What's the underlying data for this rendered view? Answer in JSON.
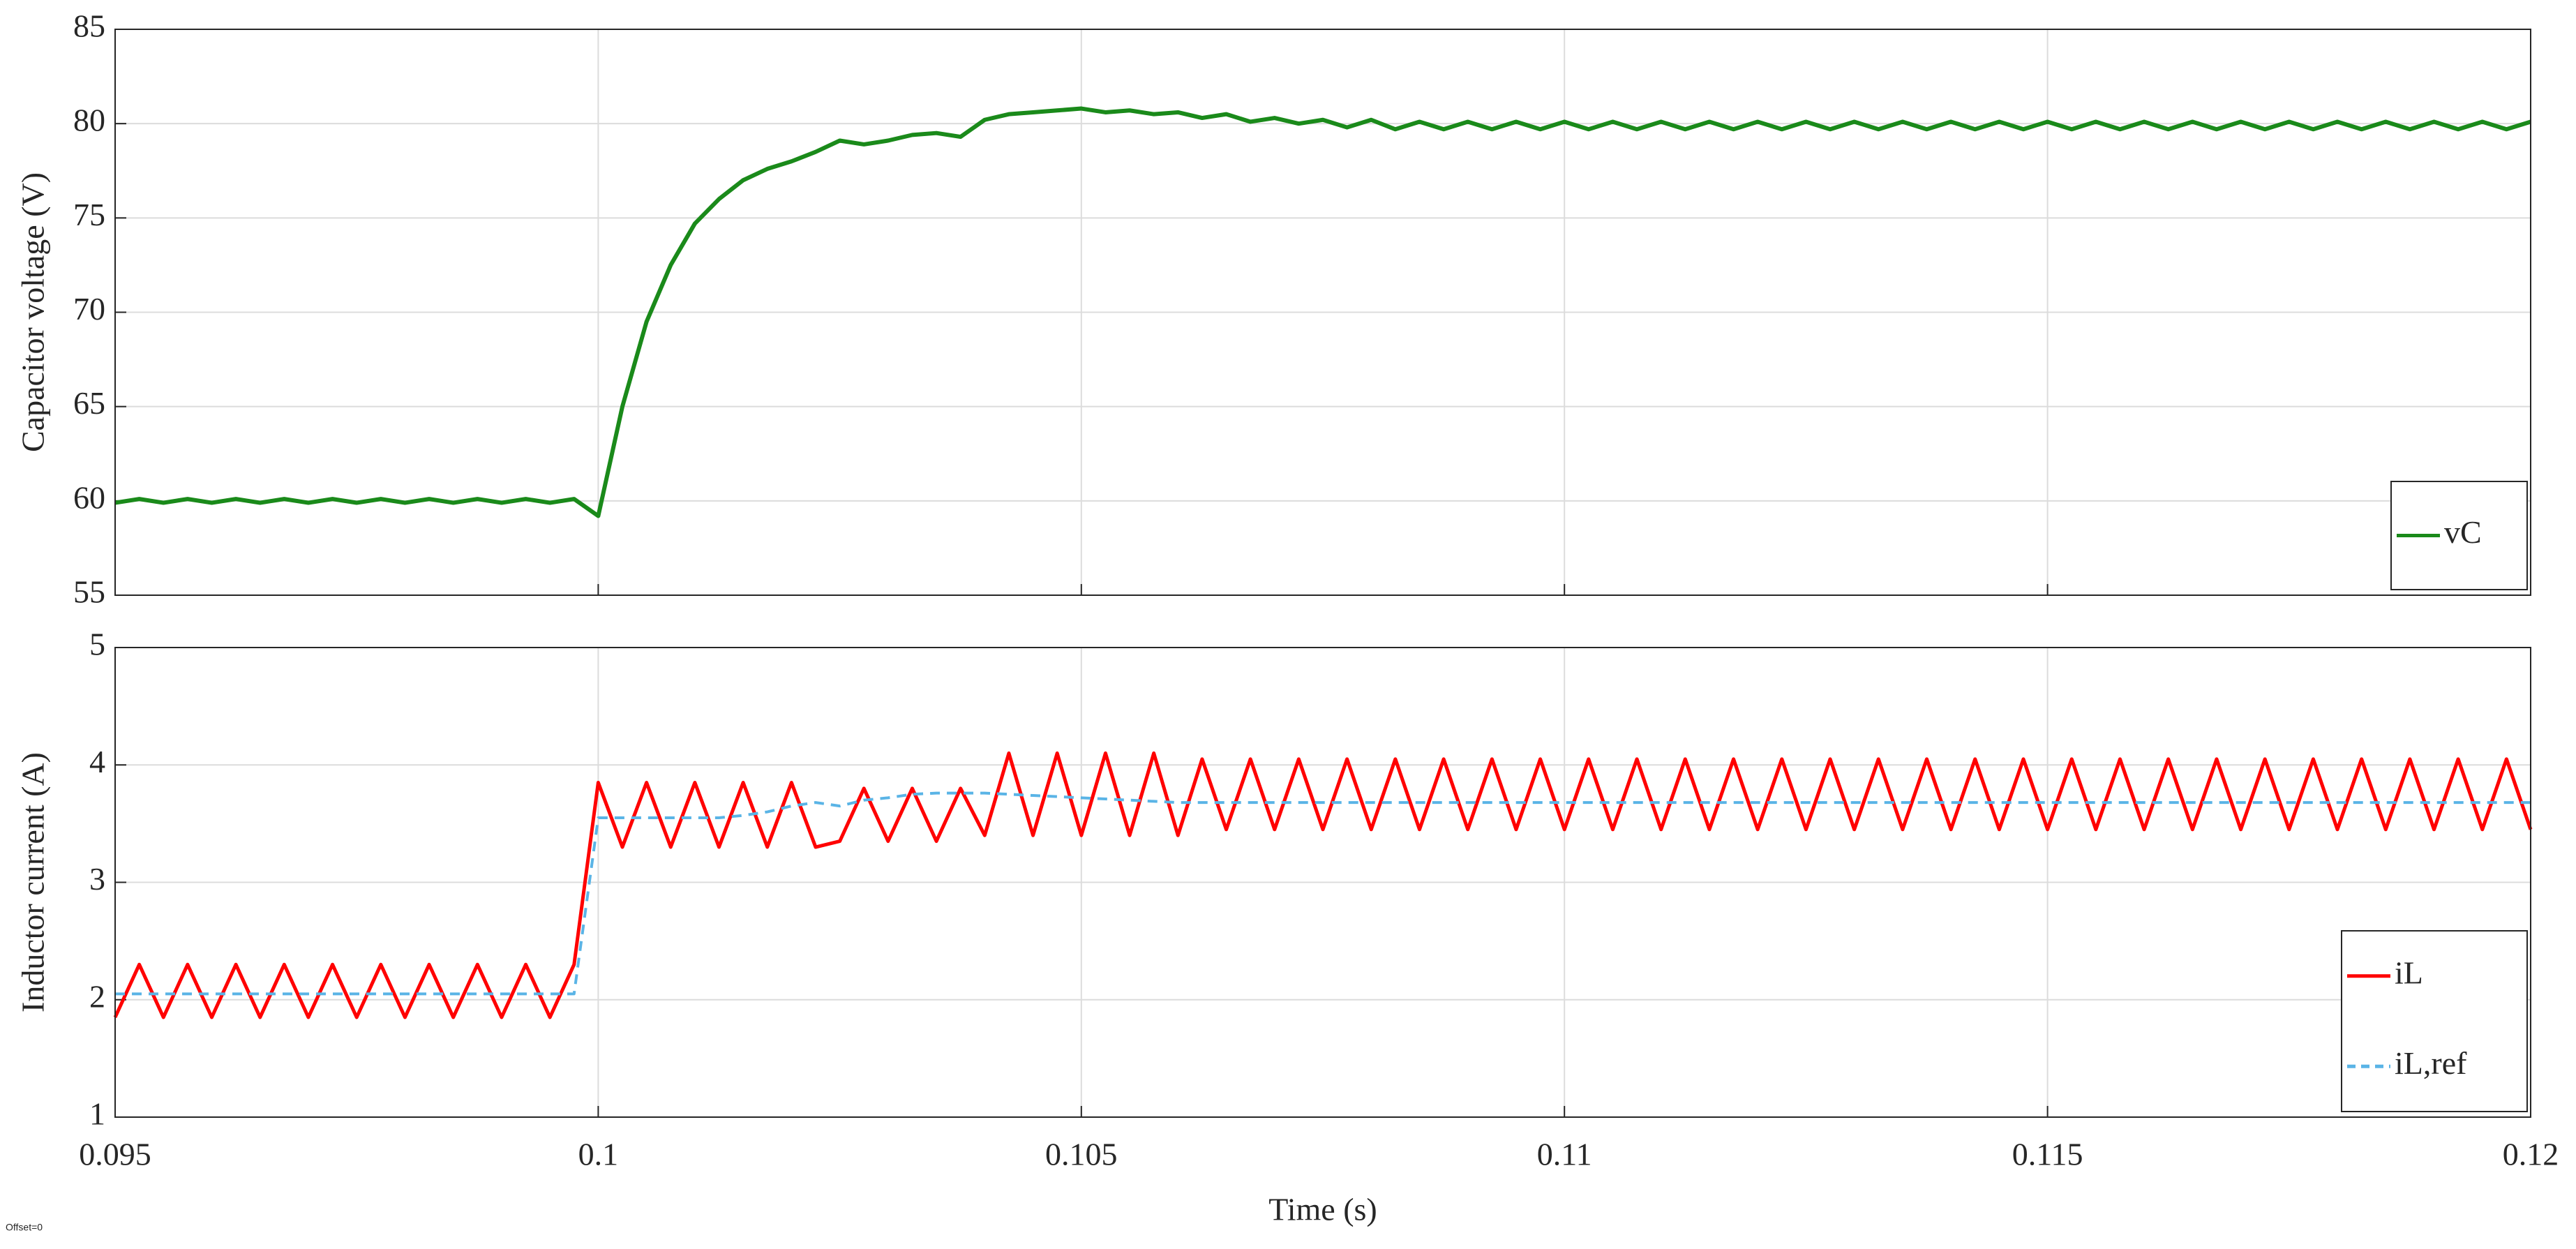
{
  "chart_data": [
    {
      "type": "line",
      "ylabel": "Capacitor voltage (V)",
      "x": [
        0.095,
        0.09525,
        0.0955,
        0.09575,
        0.096,
        0.09625,
        0.0965,
        0.09675,
        0.097,
        0.09725,
        0.0975,
        0.09775,
        0.098,
        0.09825,
        0.0985,
        0.09875,
        0.099,
        0.09925,
        0.0995,
        0.09975,
        0.1,
        0.10025,
        0.1005,
        0.10075,
        0.101,
        0.10125,
        0.1015,
        0.10175,
        0.102,
        0.10225,
        0.1025,
        0.10275,
        0.103,
        0.10325,
        0.1035,
        0.10375,
        0.104,
        0.10425,
        0.1045,
        0.10475,
        0.105,
        0.10525,
        0.1055,
        0.10575,
        0.106,
        0.10625,
        0.1065,
        0.10675,
        0.107,
        0.10725,
        0.1075,
        0.10775,
        0.108,
        0.10825,
        0.1085,
        0.10875,
        0.109,
        0.10925,
        0.1095,
        0.10975,
        0.11,
        0.11025,
        0.1105,
        0.11075,
        0.111,
        0.11125,
        0.1115,
        0.11175,
        0.112,
        0.11225,
        0.1125,
        0.11275,
        0.113,
        0.11325,
        0.1135,
        0.11375,
        0.114,
        0.11425,
        0.1145,
        0.11475,
        0.115,
        0.11525,
        0.1155,
        0.11575,
        0.116,
        0.11625,
        0.1165,
        0.11675,
        0.117,
        0.11725,
        0.1175,
        0.11775,
        0.118,
        0.11825,
        0.1185,
        0.11875,
        0.119,
        0.11925,
        0.1195,
        0.11975,
        0.12
      ],
      "series": [
        {
          "name": "vC",
          "color": "#1a8a1a",
          "values": [
            59.9,
            60.1,
            59.9,
            60.1,
            59.9,
            60.1,
            59.9,
            60.1,
            59.9,
            60.1,
            59.9,
            60.1,
            59.9,
            60.1,
            59.9,
            60.1,
            59.9,
            60.1,
            59.9,
            60.1,
            59.2,
            65,
            69.5,
            72.5,
            74.7,
            76,
            77,
            77.6,
            78,
            78.5,
            79.1,
            78.9,
            79.1,
            79.4,
            79.5,
            79.3,
            80.2,
            80.5,
            80.6,
            80.7,
            80.8,
            80.6,
            80.7,
            80.5,
            80.6,
            80.3,
            80.5,
            80.1,
            80.3,
            80.0,
            80.2,
            79.8,
            80.2,
            79.7,
            80.1,
            79.7,
            80.1,
            79.7,
            80.1,
            79.7,
            80.1,
            79.7,
            80.1,
            79.7,
            80.1,
            79.7,
            80.1,
            79.7,
            80.1,
            79.7,
            80.1,
            79.7,
            80.1,
            79.7,
            80.1,
            79.7,
            80.1,
            79.7,
            80.1,
            79.7,
            80.1,
            79.7,
            80.1,
            79.7,
            80.1,
            79.7,
            80.1,
            79.7,
            80.1,
            79.7,
            80.1,
            79.7,
            80.1,
            79.7,
            80.1,
            79.7,
            80.1,
            79.7,
            80.1,
            79.7,
            80.1
          ]
        }
      ],
      "xlim": [
        0.095,
        0.12
      ],
      "xticks": [
        0.095,
        0.1,
        0.105,
        0.11,
        0.115,
        0.12
      ],
      "ylim": [
        55,
        85
      ],
      "yticks": [
        55,
        60,
        65,
        70,
        75,
        80,
        85
      ],
      "grid": true,
      "legend": "lower right"
    },
    {
      "type": "line",
      "ylabel": "Inductor current (A)",
      "xlabel": "Time (s)",
      "x": [
        0.095,
        0.09525,
        0.0955,
        0.09575,
        0.096,
        0.09625,
        0.0965,
        0.09675,
        0.097,
        0.09725,
        0.0975,
        0.09775,
        0.098,
        0.09825,
        0.0985,
        0.09875,
        0.099,
        0.09925,
        0.0995,
        0.09975,
        0.1,
        0.10025,
        0.1005,
        0.10075,
        0.101,
        0.10125,
        0.1015,
        0.10175,
        0.102,
        0.10225,
        0.1025,
        0.10275,
        0.103,
        0.10325,
        0.1035,
        0.10375,
        0.104,
        0.10425,
        0.1045,
        0.10475,
        0.105,
        0.10525,
        0.1055,
        0.10575,
        0.106,
        0.10625,
        0.1065,
        0.10675,
        0.107,
        0.10725,
        0.1075,
        0.10775,
        0.108,
        0.10825,
        0.1085,
        0.10875,
        0.109,
        0.10925,
        0.1095,
        0.10975,
        0.11,
        0.11025,
        0.1105,
        0.11075,
        0.111,
        0.11125,
        0.1115,
        0.11175,
        0.112,
        0.11225,
        0.1125,
        0.11275,
        0.113,
        0.11325,
        0.1135,
        0.11375,
        0.114,
        0.11425,
        0.1145,
        0.11475,
        0.115,
        0.11525,
        0.1155,
        0.11575,
        0.116,
        0.11625,
        0.1165,
        0.11675,
        0.117,
        0.11725,
        0.1175,
        0.11775,
        0.118,
        0.11825,
        0.1185,
        0.11875,
        0.119,
        0.11925,
        0.1195,
        0.11975,
        0.12
      ],
      "series": [
        {
          "name": "iL",
          "color": "#ff0000",
          "values": [
            1.85,
            2.3,
            1.85,
            2.3,
            1.85,
            2.3,
            1.85,
            2.3,
            1.85,
            2.3,
            1.85,
            2.3,
            1.85,
            2.3,
            1.85,
            2.3,
            1.85,
            2.3,
            1.85,
            2.3,
            3.85,
            3.3,
            3.85,
            3.3,
            3.85,
            3.3,
            3.85,
            3.3,
            3.85,
            3.3,
            3.35,
            3.8,
            3.35,
            3.8,
            3.35,
            3.8,
            3.4,
            4.1,
            3.4,
            4.1,
            3.4,
            4.1,
            3.4,
            4.1,
            3.4,
            4.05,
            3.45,
            4.05,
            3.45,
            4.05,
            3.45,
            4.05,
            3.45,
            4.05,
            3.45,
            4.05,
            3.45,
            4.05,
            3.45,
            4.05,
            3.45,
            4.05,
            3.45,
            4.05,
            3.45,
            4.05,
            3.45,
            4.05,
            3.45,
            4.05,
            3.45,
            4.05,
            3.45,
            4.05,
            3.45,
            4.05,
            3.45,
            4.05,
            3.45,
            4.05,
            3.45,
            4.05,
            3.45,
            4.05,
            3.45,
            4.05,
            3.45,
            4.05,
            3.45,
            4.05,
            3.45,
            4.05,
            3.45,
            4.05,
            3.45,
            4.05,
            3.45,
            4.05,
            3.45,
            4.05,
            3.45
          ]
        },
        {
          "name": "iL,ref",
          "color": "#5ab4e6",
          "dashed": true,
          "values": [
            2.05,
            2.05,
            2.05,
            2.05,
            2.05,
            2.05,
            2.05,
            2.05,
            2.05,
            2.05,
            2.05,
            2.05,
            2.05,
            2.05,
            2.05,
            2.05,
            2.05,
            2.05,
            2.05,
            2.05,
            3.55,
            3.55,
            3.55,
            3.55,
            3.55,
            3.55,
            3.57,
            3.6,
            3.65,
            3.68,
            3.65,
            3.7,
            3.72,
            3.75,
            3.76,
            3.76,
            3.76,
            3.75,
            3.74,
            3.73,
            3.72,
            3.71,
            3.7,
            3.69,
            3.68,
            3.68,
            3.68,
            3.68,
            3.68,
            3.68,
            3.68,
            3.68,
            3.68,
            3.68,
            3.68,
            3.68,
            3.68,
            3.68,
            3.68,
            3.68,
            3.68,
            3.68,
            3.68,
            3.68,
            3.68,
            3.68,
            3.68,
            3.68,
            3.68,
            3.68,
            3.68,
            3.68,
            3.68,
            3.68,
            3.68,
            3.68,
            3.68,
            3.68,
            3.68,
            3.68,
            3.68,
            3.68,
            3.68,
            3.68,
            3.68,
            3.68,
            3.68,
            3.68,
            3.68,
            3.68,
            3.68,
            3.68,
            3.68,
            3.68,
            3.68,
            3.68,
            3.68,
            3.68,
            3.68,
            3.68,
            3.68
          ]
        }
      ],
      "xlim": [
        0.095,
        0.12
      ],
      "xticks": [
        0.095,
        0.1,
        0.105,
        0.11,
        0.115,
        0.12
      ],
      "ylim": [
        1,
        5
      ],
      "yticks": [
        1,
        2,
        3,
        4,
        5
      ],
      "grid": true,
      "legend": "lower right"
    }
  ],
  "footer_note": "Offset=0"
}
